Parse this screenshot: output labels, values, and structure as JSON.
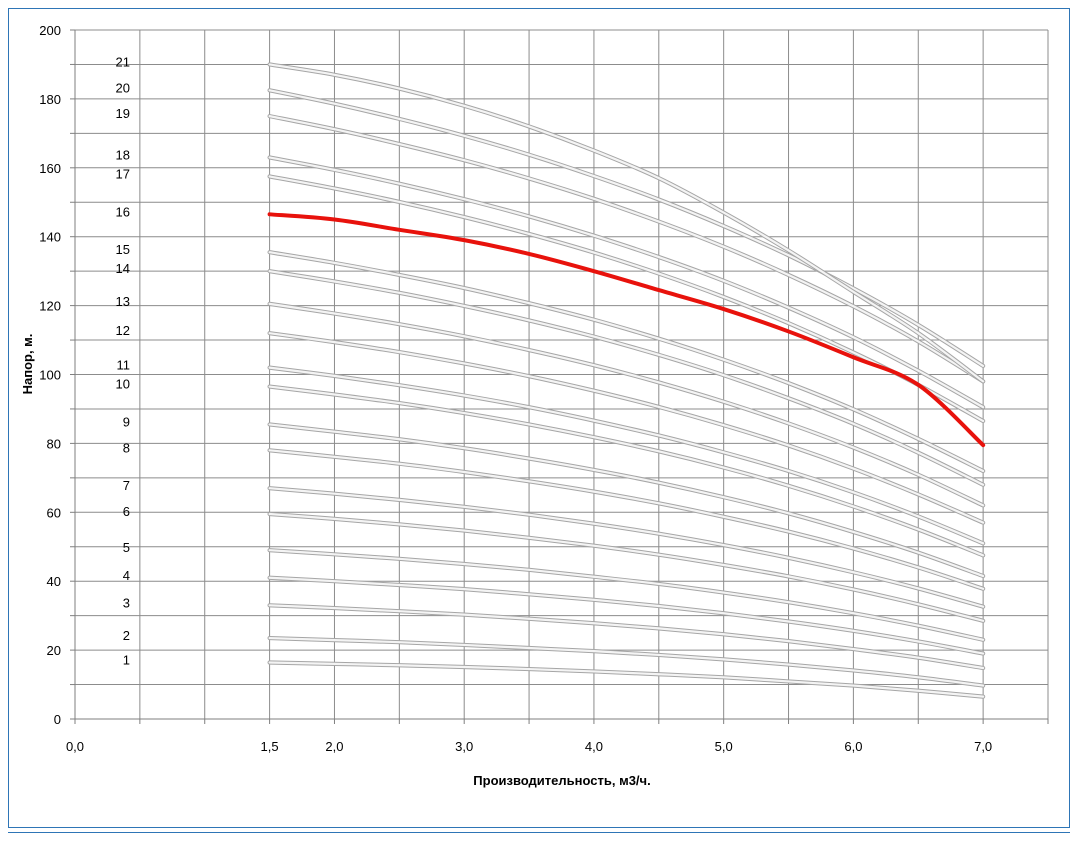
{
  "chart_data": {
    "type": "line",
    "xlabel": "Производительность, м3/ч.",
    "ylabel": "Напор, м.",
    "xlim": [
      0,
      7.5
    ],
    "ylim": [
      0,
      200
    ],
    "x_ticks": [
      "0,0",
      "1,5",
      "2,0",
      "3,0",
      "4,0",
      "5,0",
      "6,0",
      "7,0"
    ],
    "x_tick_values": [
      0,
      1.5,
      2,
      3,
      4,
      5,
      6,
      7
    ],
    "y_ticks": [
      "0",
      "20",
      "40",
      "60",
      "80",
      "100",
      "120",
      "140",
      "160",
      "180",
      "200"
    ],
    "y_tick_values": [
      0,
      20,
      40,
      60,
      80,
      100,
      120,
      140,
      160,
      180,
      200
    ],
    "grid": true,
    "x": [
      1.5,
      2.0,
      2.5,
      3.0,
      3.5,
      4.0,
      4.5,
      5.0,
      5.5,
      6.0,
      6.5,
      7.0
    ],
    "highlight_color": "#e8120c",
    "curve_color": "#d9d9d9",
    "series": [
      {
        "name": "1",
        "values": [
          16.4,
          16.0,
          15.6,
          15.1,
          14.5,
          13.8,
          13.0,
          12.1,
          10.9,
          9.7,
          8.2,
          6.5
        ]
      },
      {
        "name": "2",
        "values": [
          23.5,
          22.9,
          22.3,
          21.5,
          20.6,
          19.7,
          18.6,
          17.3,
          15.8,
          14.1,
          12.1,
          9.7
        ]
      },
      {
        "name": "3",
        "values": [
          33.0,
          32.2,
          31.3,
          30.3,
          29.1,
          27.8,
          26.3,
          24.6,
          22.6,
          20.3,
          17.8,
          14.8
        ]
      },
      {
        "name": "4",
        "values": [
          41.0,
          40.0,
          38.9,
          37.7,
          36.2,
          34.6,
          32.8,
          30.7,
          28.3,
          25.6,
          22.5,
          19.0
        ]
      },
      {
        "name": "5",
        "values": [
          49.0,
          47.8,
          46.5,
          45.0,
          43.3,
          41.3,
          39.2,
          36.7,
          33.9,
          30.7,
          27.1,
          23.0
        ]
      },
      {
        "name": "6",
        "values": [
          59.5,
          58.1,
          56.5,
          54.7,
          52.6,
          50.3,
          47.7,
          44.7,
          41.4,
          37.6,
          33.3,
          28.5
        ]
      },
      {
        "name": "7",
        "values": [
          67.0,
          65.4,
          63.6,
          61.6,
          59.3,
          56.7,
          53.8,
          50.5,
          46.8,
          42.6,
          37.9,
          32.6
        ]
      },
      {
        "name": "8",
        "values": [
          78.0,
          76.1,
          74.1,
          71.7,
          69.0,
          66.0,
          62.6,
          58.7,
          54.4,
          49.5,
          44.0,
          37.8
        ]
      },
      {
        "name": "9",
        "values": [
          85.5,
          83.4,
          81.2,
          78.6,
          75.6,
          72.3,
          68.6,
          64.4,
          59.7,
          54.3,
          48.3,
          41.5
        ]
      },
      {
        "name": "10",
        "values": [
          96.5,
          94.2,
          91.7,
          88.8,
          85.5,
          81.8,
          77.7,
          73.0,
          67.7,
          61.7,
          55.0,
          47.5
        ]
      },
      {
        "name": "11",
        "values": [
          102.0,
          99.6,
          96.9,
          93.9,
          90.5,
          86.6,
          82.3,
          77.4,
          72.0,
          65.8,
          58.8,
          51.0
        ]
      },
      {
        "name": "12",
        "values": [
          112.0,
          109.4,
          106.5,
          103.2,
          99.5,
          95.3,
          90.6,
          85.3,
          79.4,
          72.7,
          65.2,
          57.0
        ]
      },
      {
        "name": "13",
        "values": [
          120.5,
          117.7,
          114.6,
          111.1,
          107.1,
          102.7,
          97.7,
          92.1,
          85.8,
          78.8,
          70.9,
          62.0
        ]
      },
      {
        "name": "14",
        "values": [
          130.0,
          127.0,
          123.7,
          119.9,
          115.7,
          111.0,
          105.7,
          99.8,
          93.1,
          85.7,
          77.3,
          68.0
        ]
      },
      {
        "name": "15",
        "values": [
          135.5,
          132.4,
          128.9,
          125.1,
          120.7,
          115.9,
          110.4,
          104.3,
          97.5,
          89.9,
          81.3,
          72.0
        ]
      },
      {
        "name": "16",
        "values": [
          146.5,
          145.0,
          142.0,
          139.0,
          135.0,
          130.0,
          124.5,
          119.0,
          112.5,
          105.0,
          97.0,
          79.5
        ],
        "highlight": true
      },
      {
        "name": "17",
        "values": [
          157.5,
          154.0,
          150.1,
          145.7,
          140.8,
          135.4,
          129.3,
          122.5,
          114.9,
          106.4,
          97.0,
          86.5
        ]
      },
      {
        "name": "18",
        "values": [
          163.0,
          159.4,
          155.4,
          150.9,
          145.9,
          140.3,
          134.1,
          127.2,
          119.4,
          110.8,
          101.1,
          90.5
        ]
      },
      {
        "name": "19",
        "values": [
          175.0,
          171.2,
          166.9,
          162.2,
          156.9,
          151.0,
          144.4,
          137.1,
          128.9,
          119.8,
          109.6,
          98.0
        ]
      },
      {
        "name": "20",
        "values": [
          182.5,
          178.6,
          174.2,
          169.3,
          163.8,
          157.6,
          150.8,
          143.1,
          134.6,
          125.0,
          114.4,
          102.5
        ]
      },
      {
        "name": "21",
        "values": [
          190.0,
          187.0,
          183.0,
          178.0,
          172.0,
          165.0,
          157.0,
          147.0,
          136.0,
          124.0,
          112.0,
          98.0
        ]
      }
    ]
  }
}
